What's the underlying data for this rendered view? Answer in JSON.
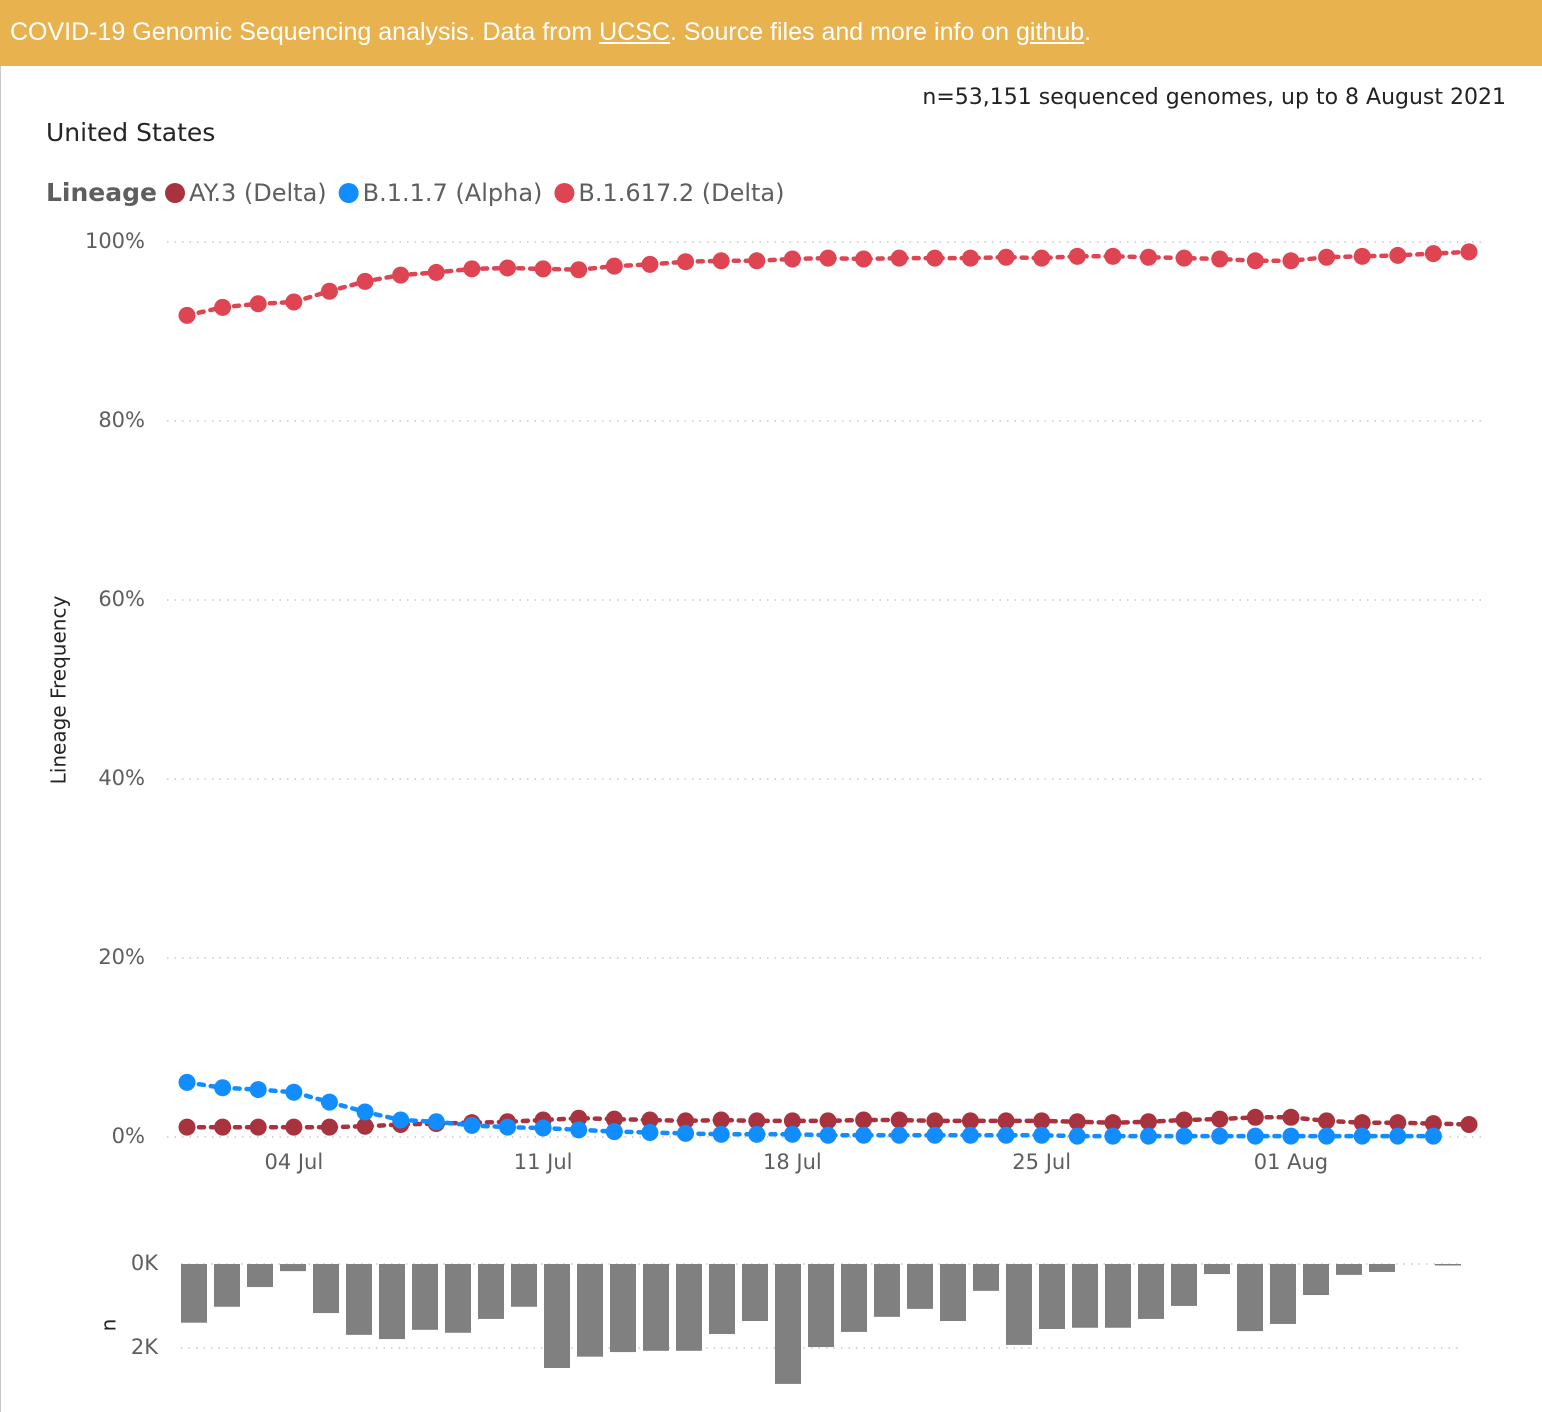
{
  "header": {
    "prefix": "COVID-19 Genomic Sequencing analysis. Data from ",
    "link1": "UCSC",
    "middle": ". Source files and more info on ",
    "link2": "github",
    "suffix": "."
  },
  "chart_data": [
    {
      "type": "line",
      "title": "United States",
      "subtitle": "n=53,151 sequenced genomes, up to 8 August 2021",
      "legend_title": "Lineage",
      "ylabel": "Lineage Frequency",
      "grid": true,
      "categories": [
        "01 Jul",
        "02 Jul",
        "03 Jul",
        "04 Jul",
        "05 Jul",
        "06 Jul",
        "07 Jul",
        "08 Jul",
        "09 Jul",
        "10 Jul",
        "11 Jul",
        "12 Jul",
        "13 Jul",
        "14 Jul",
        "15 Jul",
        "16 Jul",
        "17 Jul",
        "18 Jul",
        "19 Jul",
        "20 Jul",
        "21 Jul",
        "22 Jul",
        "23 Jul",
        "24 Jul",
        "25 Jul",
        "26 Jul",
        "27 Jul",
        "28 Jul",
        "29 Jul",
        "30 Jul",
        "31 Jul",
        "01 Aug",
        "02 Aug",
        "03 Aug",
        "04 Aug",
        "05 Aug",
        "06 Aug"
      ],
      "xticks": [
        "04 Jul",
        "11 Jul",
        "18 Jul",
        "25 Jul",
        "01 Aug"
      ],
      "ylim": [
        0,
        100
      ],
      "yticks": [
        {
          "value": 0,
          "label": "0%"
        },
        {
          "value": 20,
          "label": "20%"
        },
        {
          "value": 40,
          "label": "40%"
        },
        {
          "value": 60,
          "label": "60%"
        },
        {
          "value": 80,
          "label": "80%"
        },
        {
          "value": 100,
          "label": "100%"
        }
      ],
      "series": [
        {
          "name": "AY.3 (Delta)",
          "color": "#a8323e",
          "values": [
            1.1,
            1.1,
            1.1,
            1.1,
            1.1,
            1.2,
            1.4,
            1.5,
            1.6,
            1.7,
            1.9,
            2.1,
            2.0,
            1.9,
            1.8,
            1.9,
            1.8,
            1.8,
            1.8,
            1.9,
            1.9,
            1.8,
            1.8,
            1.8,
            1.8,
            1.7,
            1.6,
            1.7,
            1.9,
            2.0,
            2.2,
            2.2,
            1.8,
            1.6,
            1.6,
            1.5,
            1.4
          ]
        },
        {
          "name": "B.1.1.7 (Alpha)",
          "color": "#118dff",
          "values": [
            6.1,
            5.5,
            5.3,
            5.0,
            3.9,
            2.8,
            1.9,
            1.7,
            1.3,
            1.1,
            1.0,
            0.8,
            0.6,
            0.5,
            0.4,
            0.3,
            0.3,
            0.3,
            0.2,
            0.2,
            0.2,
            0.2,
            0.2,
            0.2,
            0.2,
            0.1,
            0.1,
            0.1,
            0.1,
            0.1,
            0.1,
            0.1,
            0.1,
            0.1,
            0.1,
            0.1,
            null
          ]
        },
        {
          "name": "B.1.617.2 (Delta)",
          "color": "#de4452",
          "values": [
            91.8,
            92.7,
            93.1,
            93.3,
            94.5,
            95.6,
            96.3,
            96.6,
            97.0,
            97.1,
            97.0,
            96.9,
            97.3,
            97.5,
            97.8,
            97.9,
            97.9,
            98.1,
            98.2,
            98.1,
            98.2,
            98.2,
            98.2,
            98.3,
            98.2,
            98.4,
            98.4,
            98.3,
            98.2,
            98.1,
            97.9,
            97.9,
            98.3,
            98.4,
            98.5,
            98.7,
            98.9
          ]
        }
      ]
    },
    {
      "type": "bar",
      "ylabel": "n",
      "inverted": true,
      "grid": true,
      "color": "#808080",
      "ylim": [
        0,
        3100
      ],
      "yticks": [
        {
          "value": 0,
          "label": "0K"
        },
        {
          "value": 2000,
          "label": "2K"
        }
      ],
      "values": [
        1400,
        1020,
        550,
        170,
        1170,
        1690,
        1790,
        1570,
        1640,
        1310,
        1020,
        2480,
        2210,
        2100,
        2070,
        2070,
        1670,
        1360,
        2860,
        1980,
        1620,
        1260,
        1070,
        1360,
        640,
        1930,
        1550,
        1520,
        1520,
        1310,
        1000,
        240,
        1600,
        1430,
        740,
        260,
        190,
        null,
        20
      ]
    }
  ]
}
